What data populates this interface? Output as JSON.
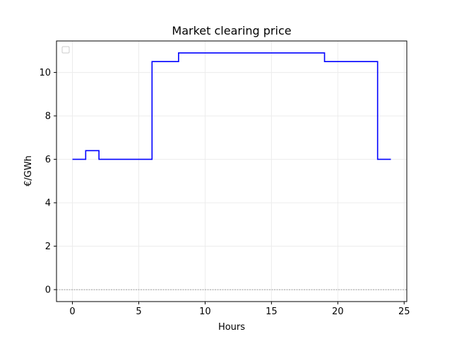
{
  "chart_data": {
    "type": "line",
    "title": "Market clearing price",
    "xlabel": "Hours",
    "ylabel": "€/GWh",
    "xlim": [
      -1.2,
      25.2
    ],
    "ylim": [
      -0.55,
      11.45
    ],
    "xticks": [
      0,
      5,
      10,
      15,
      20,
      25
    ],
    "yticks": [
      0,
      2,
      4,
      6,
      8,
      10
    ],
    "grid": true,
    "legend": "top-left (empty)",
    "step": "post",
    "reference_line": {
      "y": 0,
      "style": "dashed",
      "color": "#808080"
    },
    "series": [
      {
        "color": "#0000ff",
        "x": [
          0,
          1,
          2,
          3,
          4,
          5,
          6,
          7,
          8,
          9,
          10,
          11,
          12,
          13,
          14,
          15,
          16,
          17,
          18,
          19,
          20,
          21,
          22,
          23,
          24
        ],
        "values": [
          6.0,
          6.4,
          6.0,
          6.0,
          6.0,
          6.0,
          10.5,
          10.5,
          10.9,
          10.9,
          10.9,
          10.9,
          10.9,
          10.9,
          10.9,
          10.9,
          10.9,
          10.9,
          10.9,
          10.5,
          10.5,
          10.5,
          10.5,
          6.0,
          6.0
        ]
      }
    ]
  }
}
